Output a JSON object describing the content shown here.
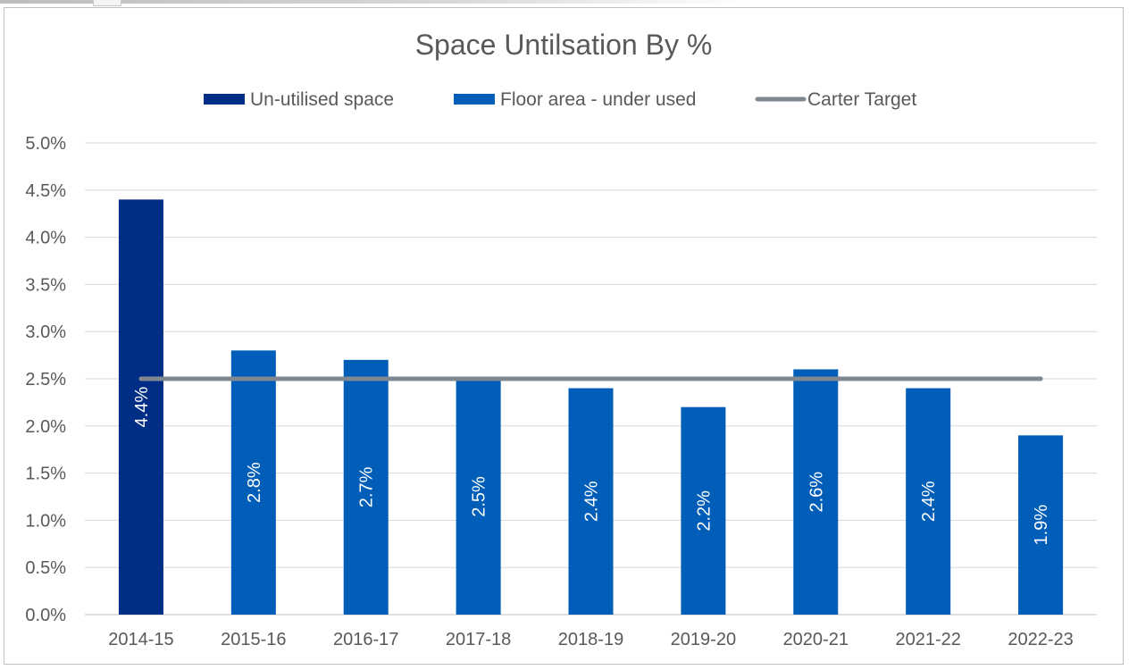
{
  "chart_data": {
    "type": "bar",
    "title": "Space Untilsation By %",
    "categories": [
      "2014-15",
      "2015-16",
      "2016-17",
      "2017-18",
      "2018-19",
      "2019-20",
      "2020-21",
      "2021-22",
      "2022-23"
    ],
    "series": [
      {
        "name": "Un-utilised space",
        "kind": "bar",
        "color": "#002D85",
        "values": [
          4.4,
          null,
          null,
          null,
          null,
          null,
          null,
          null,
          null
        ],
        "labels": [
          "4.4%",
          "",
          "",
          "",
          "",
          "",
          "",
          "",
          ""
        ]
      },
      {
        "name": "Floor area - under used",
        "kind": "bar",
        "color": "#005EB8",
        "values": [
          null,
          2.8,
          2.7,
          2.5,
          2.4,
          2.2,
          2.6,
          2.4,
          1.9
        ],
        "labels": [
          "",
          "2.8%",
          "2.7%",
          "2.5%",
          "2.4%",
          "2.2%",
          "2.6%",
          "2.4%",
          "1.9%"
        ]
      },
      {
        "name": "Carter Target",
        "kind": "line",
        "color": "#7F8790",
        "values": [
          2.5,
          2.5,
          2.5,
          2.5,
          2.5,
          2.5,
          2.5,
          2.5,
          2.5
        ]
      }
    ],
    "ylim": [
      0,
      5
    ],
    "yticks": [
      "0.0%",
      "0.5%",
      "1.0%",
      "1.5%",
      "2.0%",
      "2.5%",
      "3.0%",
      "3.5%",
      "4.0%",
      "4.5%",
      "5.0%"
    ],
    "grid": true,
    "legend": "top",
    "xlabel": "",
    "ylabel": ""
  }
}
